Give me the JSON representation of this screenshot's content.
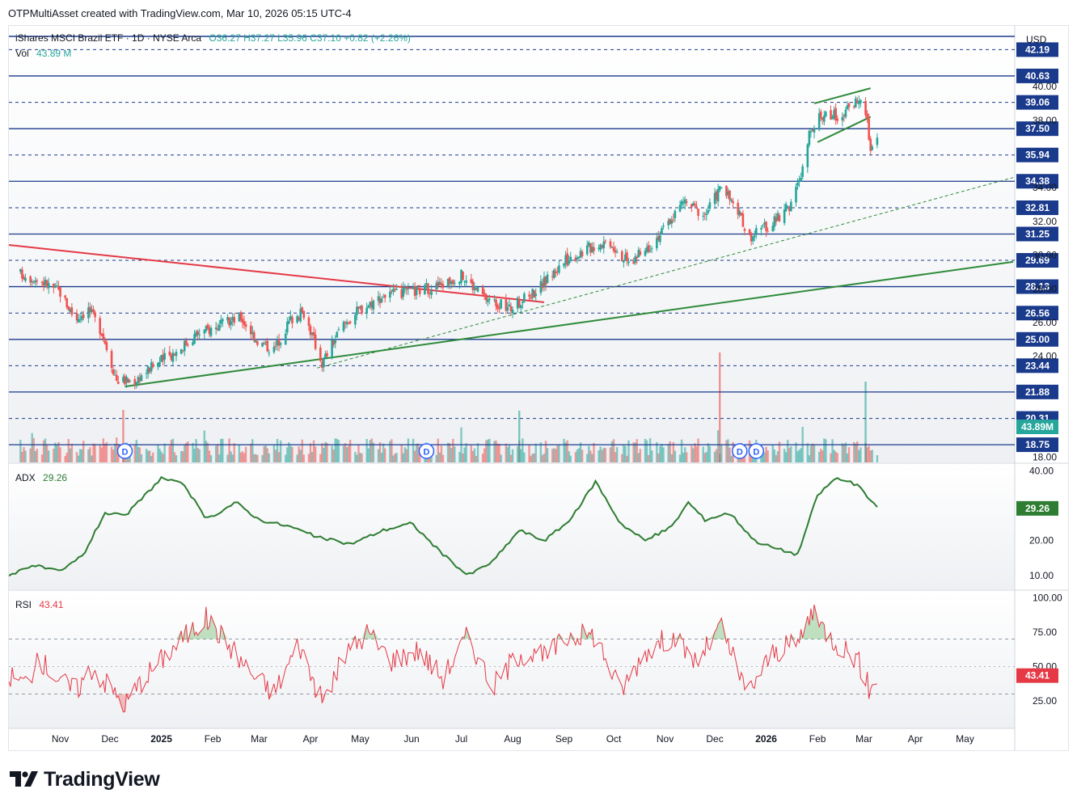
{
  "header": {
    "text": "OTPMultiAsset created with TradingView.com, Mar 10, 2026 05:15 UTC-4"
  },
  "legend": {
    "symbol": "iShares MSCI Brazil ETF · 1D · NYSE Arca",
    "ohlc": "O36.27 H37.27 L35.96 C37.10 +0.82 (+2.26%)",
    "vol_label": "Vol",
    "vol_value": "43.89 M"
  },
  "currency": "USD",
  "colors": {
    "up": "#26a69a",
    "down": "#ef5350",
    "line_blue": "#1a3a8c",
    "green_trend": "#2e8b3a",
    "red_trend": "#e53946",
    "adx": "#2e7d32",
    "rsi": "#e53946",
    "text": "#131722"
  },
  "price_levels": [
    {
      "value": 42.19,
      "label": "42.19",
      "style": "dashed"
    },
    {
      "value": 40.63,
      "label": "40.63",
      "style": "solid"
    },
    {
      "value": 39.06,
      "label": "39.06",
      "style": "dashed"
    },
    {
      "value": 37.5,
      "label": "37.50",
      "style": "solid"
    },
    {
      "value": 35.94,
      "label": "35.94",
      "style": "dashed"
    },
    {
      "value": 34.38,
      "label": "34.38",
      "style": "solid"
    },
    {
      "value": 32.81,
      "label": "32.81",
      "style": "dashed"
    },
    {
      "value": 31.25,
      "label": "31.25",
      "style": "solid"
    },
    {
      "value": 29.69,
      "label": "29.69",
      "style": "dashed"
    },
    {
      "value": 28.13,
      "label": "28.13",
      "style": "solid"
    },
    {
      "value": 26.56,
      "label": "26.56",
      "style": "dashed"
    },
    {
      "value": 25.0,
      "label": "25.00",
      "style": "solid"
    },
    {
      "value": 23.44,
      "label": "23.44",
      "style": "dashed"
    },
    {
      "value": 21.88,
      "label": "21.88",
      "style": "solid"
    },
    {
      "value": 20.31,
      "label": "20.31",
      "style": "dashed"
    },
    {
      "value": 18.75,
      "label": "18.75",
      "style": "solid"
    }
  ],
  "price_axis_ticks": [
    "40.00",
    "38.00",
    "34.00",
    "32.00",
    "30.00",
    "28.00",
    "26.00",
    "24.00",
    "18.00"
  ],
  "volume_badge": "43.89M",
  "time_labels": [
    {
      "label": "Nov",
      "bold": false
    },
    {
      "label": "Dec",
      "bold": false
    },
    {
      "label": "2025",
      "bold": true
    },
    {
      "label": "Feb",
      "bold": false
    },
    {
      "label": "Mar",
      "bold": false
    },
    {
      "label": "Apr",
      "bold": false
    },
    {
      "label": "May",
      "bold": false
    },
    {
      "label": "Jun",
      "bold": false
    },
    {
      "label": "Jul",
      "bold": false
    },
    {
      "label": "Aug",
      "bold": false
    },
    {
      "label": "Sep",
      "bold": false
    },
    {
      "label": "Oct",
      "bold": false
    },
    {
      "label": "Nov",
      "bold": false
    },
    {
      "label": "Dec",
      "bold": false
    },
    {
      "label": "2026",
      "bold": true
    },
    {
      "label": "Feb",
      "bold": false
    },
    {
      "label": "Mar",
      "bold": false
    },
    {
      "label": "Apr",
      "bold": false
    },
    {
      "label": "May",
      "bold": false
    }
  ],
  "dividend_marker": "D",
  "adx": {
    "label": "ADX",
    "value": "29.26",
    "ticks": [
      "40.00",
      "20.00",
      "10.00"
    ],
    "badge": "29.26"
  },
  "rsi": {
    "label": "RSI",
    "value": "43.41",
    "ticks": [
      "100.00",
      "75.00",
      "50.00",
      "25.00"
    ],
    "badge": "43.41"
  },
  "footer": {
    "brand": "TradingView"
  },
  "chart_data": {
    "type": "line",
    "price_range": [
      17.7,
      43.6
    ],
    "x_domain_months": [
      "2024-10",
      "2026-05"
    ],
    "price_path": [
      {
        "date": "2024-10-08",
        "close": 28.9
      },
      {
        "date": "2024-10-20",
        "close": 28.5
      },
      {
        "date": "2024-11-01",
        "close": 27.8
      },
      {
        "date": "2024-11-10",
        "close": 26.2
      },
      {
        "date": "2024-11-18",
        "close": 26.8
      },
      {
        "date": "2024-11-26",
        "close": 25.5
      },
      {
        "date": "2024-12-05",
        "close": 22.6
      },
      {
        "date": "2024-12-15",
        "close": 22.5
      },
      {
        "date": "2024-12-28",
        "close": 23.5
      },
      {
        "date": "2025-01-10",
        "close": 24.3
      },
      {
        "date": "2025-01-22",
        "close": 25.3
      },
      {
        "date": "2025-02-05",
        "close": 25.8
      },
      {
        "date": "2025-02-18",
        "close": 26.3
      },
      {
        "date": "2025-03-01",
        "close": 24.8
      },
      {
        "date": "2025-03-10",
        "close": 24.4
      },
      {
        "date": "2025-03-20",
        "close": 26.2
      },
      {
        "date": "2025-03-28",
        "close": 26.6
      },
      {
        "date": "2025-04-08",
        "close": 23.6
      },
      {
        "date": "2025-04-20",
        "close": 25.8
      },
      {
        "date": "2025-05-01",
        "close": 26.8
      },
      {
        "date": "2025-05-15",
        "close": 27.6
      },
      {
        "date": "2025-06-01",
        "close": 27.8
      },
      {
        "date": "2025-06-18",
        "close": 28.2
      },
      {
        "date": "2025-07-01",
        "close": 28.8
      },
      {
        "date": "2025-07-15",
        "close": 27.5
      },
      {
        "date": "2025-07-30",
        "close": 26.8
      },
      {
        "date": "2025-08-15",
        "close": 27.9
      },
      {
        "date": "2025-09-01",
        "close": 29.6
      },
      {
        "date": "2025-09-15",
        "close": 30.4
      },
      {
        "date": "2025-09-28",
        "close": 30.9
      },
      {
        "date": "2025-10-10",
        "close": 29.5
      },
      {
        "date": "2025-10-20",
        "close": 30.3
      },
      {
        "date": "2025-11-01",
        "close": 31.6
      },
      {
        "date": "2025-11-12",
        "close": 33.2
      },
      {
        "date": "2025-11-25",
        "close": 32.4
      },
      {
        "date": "2025-12-05",
        "close": 34.1
      },
      {
        "date": "2025-12-15",
        "close": 32.5
      },
      {
        "date": "2025-12-22",
        "close": 31.1
      },
      {
        "date": "2026-01-05",
        "close": 31.9
      },
      {
        "date": "2026-01-15",
        "close": 32.9
      },
      {
        "date": "2026-01-22",
        "close": 34.6
      },
      {
        "date": "2026-01-28",
        "close": 37.6
      },
      {
        "date": "2026-02-05",
        "close": 38.4
      },
      {
        "date": "2026-02-15",
        "close": 38.2
      },
      {
        "date": "2026-02-25",
        "close": 39.3
      },
      {
        "date": "2026-03-02",
        "close": 38.6
      },
      {
        "date": "2026-03-05",
        "close": 36.2
      },
      {
        "date": "2026-03-09",
        "close": 37.1
      }
    ],
    "trendlines": [
      {
        "name": "red_down",
        "from": {
          "date": "2024-10-01",
          "price": 30.6
        },
        "to": {
          "date": "2025-08-20",
          "price": 27.2
        }
      },
      {
        "name": "green_long",
        "from": {
          "date": "2024-12-10",
          "price": 22.2
        },
        "to": {
          "date": "2026-05-30",
          "price": 29.6
        }
      },
      {
        "name": "green_dashed",
        "from": {
          "date": "2025-04-05",
          "price": 23.3
        },
        "to": {
          "date": "2026-05-30",
          "price": 34.6
        }
      },
      {
        "name": "channel_top",
        "from": {
          "date": "2026-01-30",
          "price": 39.0
        },
        "to": {
          "date": "2026-03-05",
          "price": 39.9
        }
      },
      {
        "name": "channel_bottom",
        "from": {
          "date": "2026-02-01",
          "price": 36.7
        },
        "to": {
          "date": "2026-03-05",
          "price": 38.2
        }
      }
    ],
    "dividends": [
      "2024-12-10",
      "2025-06-10",
      "2025-12-16",
      "2025-12-26"
    ],
    "adx_series": [
      {
        "date": "2024-10-01",
        "value": 10
      },
      {
        "date": "2024-10-15",
        "value": 13
      },
      {
        "date": "2024-11-01",
        "value": 11
      },
      {
        "date": "2024-11-15",
        "value": 16
      },
      {
        "date": "2024-11-28",
        "value": 28
      },
      {
        "date": "2024-12-10",
        "value": 27
      },
      {
        "date": "2025-01-01",
        "value": 38
      },
      {
        "date": "2025-01-15",
        "value": 36
      },
      {
        "date": "2025-01-28",
        "value": 26
      },
      {
        "date": "2025-02-15",
        "value": 31
      },
      {
        "date": "2025-03-01",
        "value": 26
      },
      {
        "date": "2025-03-20",
        "value": 24
      },
      {
        "date": "2025-04-05",
        "value": 21
      },
      {
        "date": "2025-04-25",
        "value": 19
      },
      {
        "date": "2025-05-15",
        "value": 23
      },
      {
        "date": "2025-06-01",
        "value": 25
      },
      {
        "date": "2025-06-20",
        "value": 16
      },
      {
        "date": "2025-07-05",
        "value": 10
      },
      {
        "date": "2025-07-20",
        "value": 14
      },
      {
        "date": "2025-08-05",
        "value": 23
      },
      {
        "date": "2025-08-20",
        "value": 20
      },
      {
        "date": "2025-09-05",
        "value": 26
      },
      {
        "date": "2025-09-20",
        "value": 37
      },
      {
        "date": "2025-10-05",
        "value": 25
      },
      {
        "date": "2025-10-20",
        "value": 20
      },
      {
        "date": "2025-11-05",
        "value": 24
      },
      {
        "date": "2025-11-15",
        "value": 31
      },
      {
        "date": "2025-11-25",
        "value": 26
      },
      {
        "date": "2025-12-10",
        "value": 28
      },
      {
        "date": "2025-12-25",
        "value": 20
      },
      {
        "date": "2026-01-05",
        "value": 18
      },
      {
        "date": "2026-01-20",
        "value": 16
      },
      {
        "date": "2026-02-01",
        "value": 33
      },
      {
        "date": "2026-02-12",
        "value": 38
      },
      {
        "date": "2026-02-25",
        "value": 36
      },
      {
        "date": "2026-03-09",
        "value": 29.26
      }
    ],
    "rsi_series": [
      {
        "date": "2024-10-01",
        "value": 44
      },
      {
        "date": "2024-10-10",
        "value": 38
      },
      {
        "date": "2024-10-20",
        "value": 55
      },
      {
        "date": "2024-11-01",
        "value": 40
      },
      {
        "date": "2024-11-10",
        "value": 32
      },
      {
        "date": "2024-11-20",
        "value": 49
      },
      {
        "date": "2024-12-01",
        "value": 35
      },
      {
        "date": "2024-12-10",
        "value": 22
      },
      {
        "date": "2024-12-20",
        "value": 40
      },
      {
        "date": "2025-01-01",
        "value": 55
      },
      {
        "date": "2025-01-15",
        "value": 72
      },
      {
        "date": "2025-01-28",
        "value": 85
      },
      {
        "date": "2025-02-10",
        "value": 67
      },
      {
        "date": "2025-02-25",
        "value": 44
      },
      {
        "date": "2025-03-10",
        "value": 31
      },
      {
        "date": "2025-03-25",
        "value": 67
      },
      {
        "date": "2025-04-08",
        "value": 24
      },
      {
        "date": "2025-04-22",
        "value": 58
      },
      {
        "date": "2025-05-05",
        "value": 75
      },
      {
        "date": "2025-05-20",
        "value": 55
      },
      {
        "date": "2025-06-05",
        "value": 62
      },
      {
        "date": "2025-06-20",
        "value": 42
      },
      {
        "date": "2025-07-05",
        "value": 73
      },
      {
        "date": "2025-07-20",
        "value": 35
      },
      {
        "date": "2025-08-05",
        "value": 60
      },
      {
        "date": "2025-08-20",
        "value": 57
      },
      {
        "date": "2025-09-05",
        "value": 73
      },
      {
        "date": "2025-09-20",
        "value": 73
      },
      {
        "date": "2025-10-05",
        "value": 32
      },
      {
        "date": "2025-10-20",
        "value": 61
      },
      {
        "date": "2025-11-05",
        "value": 72
      },
      {
        "date": "2025-11-20",
        "value": 53
      },
      {
        "date": "2025-12-05",
        "value": 79
      },
      {
        "date": "2025-12-20",
        "value": 30
      },
      {
        "date": "2026-01-05",
        "value": 60
      },
      {
        "date": "2026-01-20",
        "value": 67
      },
      {
        "date": "2026-01-28",
        "value": 89
      },
      {
        "date": "2026-02-10",
        "value": 70
      },
      {
        "date": "2026-02-25",
        "value": 56
      },
      {
        "date": "2026-03-05",
        "value": 31
      },
      {
        "date": "2026-03-09",
        "value": 43.41
      }
    ]
  }
}
